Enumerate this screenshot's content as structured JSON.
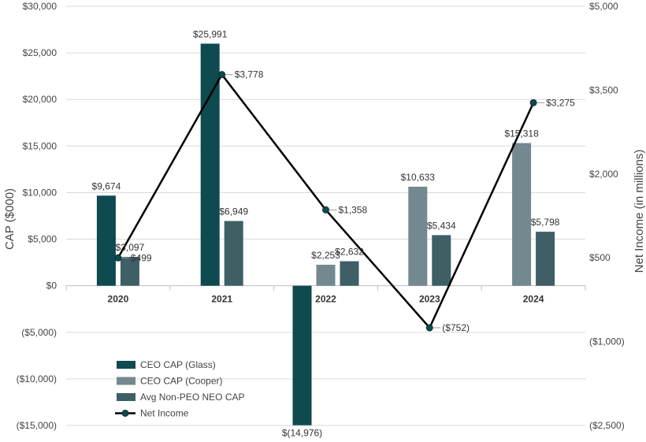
{
  "chart_data": {
    "type": "bar",
    "categories": [
      "2020",
      "2021",
      "2022",
      "2023",
      "2024"
    ],
    "series": [
      {
        "name": "CEO CAP (Glass)",
        "axis": "left",
        "color": "#0e4a4f",
        "values": [
          9674,
          25991,
          -14976,
          null,
          null
        ],
        "labels": [
          "$9,674",
          "$25,991",
          "$(14,976)",
          null,
          null
        ]
      },
      {
        "name": "CEO CAP (Cooper)",
        "axis": "left",
        "color": "#73888f",
        "values": [
          null,
          null,
          2253,
          10633,
          15318
        ],
        "labels": [
          null,
          null,
          "$2,253",
          "$10,633",
          "$15,318"
        ]
      },
      {
        "name": "Avg Non-PEO NEO CAP",
        "axis": "left",
        "color": "#3e5f66",
        "values": [
          3097,
          6949,
          2632,
          5434,
          5798
        ],
        "labels": [
          "$3,097",
          "$6,949",
          "$2,632",
          "$5,434",
          "$5,798"
        ]
      },
      {
        "name": "Net Income",
        "type": "line",
        "axis": "right",
        "color": "#000000",
        "marker_color": "#0e4a4f",
        "values": [
          499,
          3778,
          1358,
          -752,
          3275
        ],
        "labels": [
          "$499",
          "$3,778",
          "$1,358",
          "($752)",
          "$3,275"
        ]
      }
    ],
    "ylabel": "CAP ($000)",
    "y2label": "Net Income (in millions)",
    "ylim": [
      -15000,
      30000
    ],
    "y2lim": [
      -2500,
      5000
    ],
    "yticks": [
      -15000,
      -10000,
      -5000,
      0,
      5000,
      10000,
      15000,
      20000,
      25000,
      30000
    ],
    "ytick_labels": [
      "($15,000)",
      "($10,000)",
      "($5,000)",
      "$0",
      "$5,000",
      "$10,000",
      "$15,000",
      "$20,000",
      "$25,000",
      "$30,000"
    ],
    "y2ticks": [
      -2500,
      -1000,
      500,
      2000,
      3500,
      5000
    ],
    "y2tick_labels": [
      "($2,500)",
      "($1,000)",
      "$500",
      "$2,000",
      "$3,500",
      "$5,000"
    ],
    "grid": true,
    "legend_position": "lower-left, inside plot"
  }
}
